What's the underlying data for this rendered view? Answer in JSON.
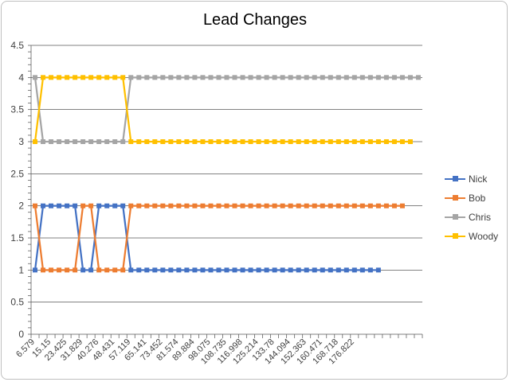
{
  "chart_data": {
    "type": "line",
    "title": "Lead Changes",
    "xlabel": "",
    "ylabel": "",
    "ylim": [
      0,
      4.5
    ],
    "y_tick_labels": [
      "0",
      "0.5",
      "1",
      "1.5",
      "2",
      "2.5",
      "3",
      "3.5",
      "4",
      "4.5"
    ],
    "grid": true,
    "legend_position": "right",
    "x_tick_labels": [
      "6.579",
      "15.15",
      "23.425",
      "31.829",
      "40.276",
      "48.431",
      "57.119",
      "65.141",
      "73.452",
      "81.574",
      "89.884",
      "98.075",
      "108.735",
      "116.998",
      "125.214",
      "133.78",
      "144.094",
      "152.363",
      "160.471",
      "168.718",
      "176.822"
    ],
    "x_category_count": 49,
    "series": [
      {
        "name": "Nick",
        "color": "#4472c4",
        "values": [
          1,
          2,
          2,
          2,
          2,
          2,
          1,
          1,
          2,
          2,
          2,
          2,
          1,
          1,
          1,
          1,
          1,
          1,
          1,
          1,
          1,
          1,
          1,
          1,
          1,
          1,
          1,
          1,
          1,
          1,
          1,
          1,
          1,
          1,
          1,
          1,
          1,
          1,
          1,
          1,
          1,
          1,
          1,
          1
        ]
      },
      {
        "name": "Bob",
        "color": "#ed7d31",
        "values": [
          2,
          1,
          1,
          1,
          1,
          1,
          2,
          2,
          1,
          1,
          1,
          1,
          2,
          2,
          2,
          2,
          2,
          2,
          2,
          2,
          2,
          2,
          2,
          2,
          2,
          2,
          2,
          2,
          2,
          2,
          2,
          2,
          2,
          2,
          2,
          2,
          2,
          2,
          2,
          2,
          2,
          2,
          2,
          2,
          2,
          2,
          2
        ]
      },
      {
        "name": "Chris",
        "color": "#a5a5a5",
        "values": [
          4,
          3,
          3,
          3,
          3,
          3,
          3,
          3,
          3,
          3,
          3,
          3,
          4,
          4,
          4,
          4,
          4,
          4,
          4,
          4,
          4,
          4,
          4,
          4,
          4,
          4,
          4,
          4,
          4,
          4,
          4,
          4,
          4,
          4,
          4,
          4,
          4,
          4,
          4,
          4,
          4,
          4,
          4,
          4,
          4,
          4,
          4,
          4,
          4
        ]
      },
      {
        "name": "Woody",
        "color": "#ffc000",
        "values": [
          3,
          4,
          4,
          4,
          4,
          4,
          4,
          4,
          4,
          4,
          4,
          4,
          3,
          3,
          3,
          3,
          3,
          3,
          3,
          3,
          3,
          3,
          3,
          3,
          3,
          3,
          3,
          3,
          3,
          3,
          3,
          3,
          3,
          3,
          3,
          3,
          3,
          3,
          3,
          3,
          3,
          3,
          3,
          3,
          3,
          3,
          3,
          3
        ]
      }
    ]
  }
}
